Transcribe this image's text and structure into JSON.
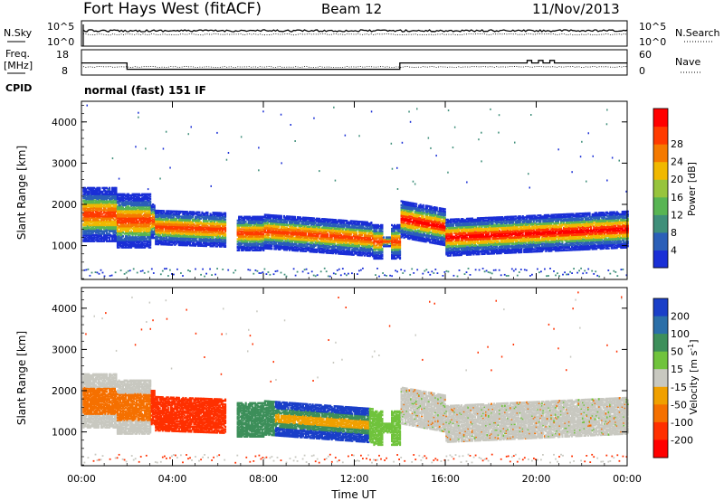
{
  "header": {
    "station": "Fort Hays West (fitACF)",
    "beam": "Beam 12",
    "date": "11/Nov/2013"
  },
  "panels": {
    "nsky_label": "N.Sky",
    "nsky_tick_top": "10^5",
    "nsky_tick_bottom": "10^0",
    "nsearch_label": "N.Search",
    "nsearch_tick_top": "10^5",
    "nsearch_tick_bottom": "10^0",
    "freq_label_1": "Freq.",
    "freq_label_2": "[MHz]",
    "freq_tick_top": "18",
    "freq_tick_bottom": "8",
    "nave_label": "Nave",
    "nave_tick_top": "60",
    "nave_tick_bottom": "0",
    "cpid_label": "CPID",
    "cpid_text": "normal (fast) 151 IF"
  },
  "chart_data": [
    {
      "type": "heatmap",
      "name": "Power",
      "xlabel": "",
      "ylabel": "Slant Range [km]",
      "x_ticks": [
        "00:00",
        "04:00",
        "08:00",
        "12:00",
        "16:00",
        "20:00",
        "00:00"
      ],
      "y_ticks": [
        1000,
        2000,
        3000,
        4000
      ],
      "xlim_hours": [
        0,
        24
      ],
      "ylim_km": [
        180,
        4500
      ],
      "colorbar_label": "Power [dB]",
      "colorbar_ticks": [
        4,
        8,
        12,
        16,
        20,
        24,
        28
      ],
      "colorbar_colors": [
        "#1a2fd6",
        "#2b5fb8",
        "#3f8f7a",
        "#58b553",
        "#97c43c",
        "#f0b800",
        "#f57a00",
        "#ff3b00",
        "#ff0000"
      ]
    },
    {
      "type": "heatmap",
      "name": "Velocity",
      "xlabel": "Time UT",
      "ylabel": "Slant Range [km]",
      "x_ticks": [
        "00:00",
        "04:00",
        "08:00",
        "12:00",
        "16:00",
        "20:00",
        "00:00"
      ],
      "y_ticks": [
        1000,
        2000,
        3000,
        4000
      ],
      "xlim_hours": [
        0,
        24
      ],
      "ylim_km": [
        180,
        4500
      ],
      "colorbar_label": "Velocity [m s",
      "colorbar_label_sup": "-1",
      "colorbar_label_end": "]",
      "colorbar_ticks": [
        200,
        100,
        50,
        15,
        -15,
        -50,
        -100,
        -200
      ],
      "colorbar_colors": [
        "#1a3fc8",
        "#2b6fa8",
        "#3d8f5a",
        "#70c33c",
        "#c8c8c0",
        "#f0a000",
        "#f57000",
        "#ff3000",
        "#ff0000"
      ]
    }
  ]
}
